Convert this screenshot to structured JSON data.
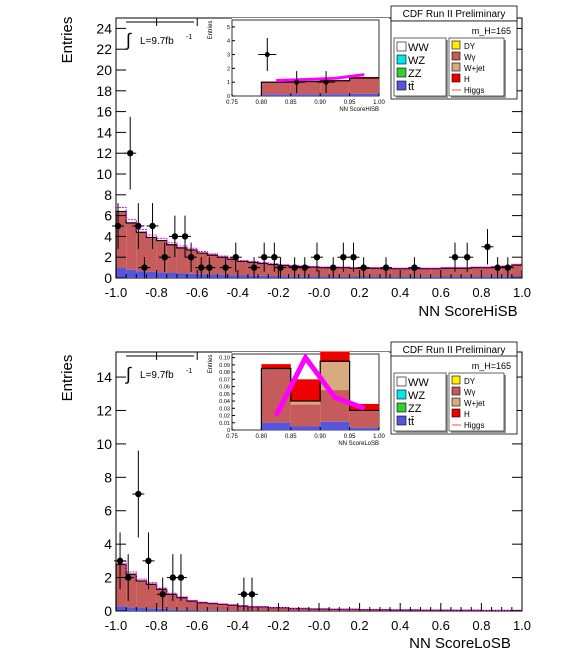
{
  "chart_data": [
    {
      "type": "bar",
      "experiment": "CDF Run II Preliminary",
      "mass_label": "m_H=165",
      "lumi_label": "L=9.7fb",
      "lumi_exp": "-1",
      "xlabel": "NN ScoreHiSB",
      "ylabel": "Entries",
      "xlim": [
        -1.0,
        1.0
      ],
      "ylim": [
        0,
        25
      ],
      "x_ticks": [
        "-1.0",
        "-0.8",
        "-0.6",
        "-0.4",
        "-0.2",
        "-0.0",
        "0.2",
        "0.4",
        "0.6",
        "0.8",
        "1.0"
      ],
      "y_ticks": [
        "0",
        "2",
        "4",
        "6",
        "8",
        "10",
        "12",
        "14",
        "16",
        "18",
        "20",
        "22",
        "24"
      ],
      "bin_edges_start": -1.0,
      "bin_width": 0.05,
      "background_total": [
        6.4,
        5.3,
        4.4,
        3.9,
        3.6,
        3.2,
        2.9,
        2.7,
        2.4,
        2.2,
        2.0,
        1.8,
        1.6,
        1.5,
        1.4,
        1.3,
        1.2,
        1.15,
        1.1,
        1.05,
        1.0,
        1.0,
        1.0,
        0.95,
        0.95,
        0.95,
        0.9,
        0.9,
        0.9,
        0.9,
        0.9,
        0.9,
        0.95,
        0.95,
        0.95,
        1.0,
        1.0,
        1.05,
        1.1,
        1.25
      ],
      "ww_fraction": 0.85,
      "data_points": [
        {
          "x": -0.99,
          "y": 5,
          "err": 2.2
        },
        {
          "x": -0.93,
          "y": 12,
          "err": 3.5
        },
        {
          "x": -0.89,
          "y": 5,
          "err": 2.2
        },
        {
          "x": -0.86,
          "y": 1,
          "err": 1.0
        },
        {
          "x": -0.82,
          "y": 5,
          "err": 2.2
        },
        {
          "x": -0.76,
          "y": 2,
          "err": 1.4
        },
        {
          "x": -0.71,
          "y": 4,
          "err": 2.0
        },
        {
          "x": -0.66,
          "y": 4,
          "err": 2.0
        },
        {
          "x": -0.63,
          "y": 2,
          "err": 1.4
        },
        {
          "x": -0.58,
          "y": 1,
          "err": 1.0
        },
        {
          "x": -0.54,
          "y": 1,
          "err": 1.0
        },
        {
          "x": -0.46,
          "y": 1,
          "err": 1.0
        },
        {
          "x": -0.41,
          "y": 2,
          "err": 1.4
        },
        {
          "x": -0.32,
          "y": 1,
          "err": 1.0
        },
        {
          "x": -0.27,
          "y": 2,
          "err": 1.4
        },
        {
          "x": -0.22,
          "y": 2,
          "err": 1.4
        },
        {
          "x": -0.19,
          "y": 1,
          "err": 1.0
        },
        {
          "x": -0.12,
          "y": 1,
          "err": 1.0
        },
        {
          "x": -0.07,
          "y": 1,
          "err": 1.0
        },
        {
          "x": -0.01,
          "y": 2,
          "err": 1.4
        },
        {
          "x": 0.07,
          "y": 1,
          "err": 1.0
        },
        {
          "x": 0.12,
          "y": 2,
          "err": 1.4
        },
        {
          "x": 0.17,
          "y": 2,
          "err": 1.4
        },
        {
          "x": 0.22,
          "y": 1,
          "err": 1.0
        },
        {
          "x": 0.33,
          "y": 1,
          "err": 1.0
        },
        {
          "x": 0.47,
          "y": 1,
          "err": 1.0
        },
        {
          "x": 0.67,
          "y": 2,
          "err": 1.4
        },
        {
          "x": 0.73,
          "y": 2,
          "err": 1.4
        },
        {
          "x": 0.83,
          "y": 3,
          "err": 1.7
        },
        {
          "x": 0.88,
          "y": 1,
          "err": 1.0
        },
        {
          "x": 0.93,
          "y": 1,
          "err": 1.0
        }
      ],
      "inset": {
        "xlabel": "NN ScoreHiSB",
        "ylabel": "Entries",
        "xlim": [
          0.75,
          1.0
        ],
        "ylim": [
          0,
          5.5
        ],
        "x_ticks": [
          "0.75",
          "0.80",
          "0.85",
          "0.90",
          "0.95",
          "1.00"
        ],
        "y_ticks": [
          "0",
          "1",
          "2",
          "3",
          "4",
          "5"
        ],
        "bin_edges": [
          0.8,
          0.85,
          0.9,
          0.95,
          1.0
        ],
        "background_total": [
          1.0,
          1.05,
          1.1,
          1.3
        ],
        "signal": [
          0.12,
          0.14,
          0.18,
          0.25
        ],
        "data_points": [
          {
            "x": 0.81,
            "y": 3,
            "err": 1.2
          },
          {
            "x": 0.86,
            "y": 1,
            "err": 0.8
          },
          {
            "x": 0.91,
            "y": 1,
            "err": 0.8
          }
        ]
      },
      "legend": [
        {
          "label": "WW",
          "color": "#ffffff"
        },
        {
          "label": "WZ",
          "color": "#00e5ee"
        },
        {
          "label": "ZZ",
          "color": "#33cc33"
        },
        {
          "label": "tt̄",
          "color": "#5555dd"
        },
        {
          "label": "DY",
          "color": "#ffee00"
        },
        {
          "label": "Wγ",
          "color": "#c65b5b"
        },
        {
          "label": "W+jet",
          "color": "#d8aa80"
        },
        {
          "label": "H",
          "color": "#ee0000"
        },
        {
          "label": "Higgs",
          "color": "#ff6666"
        }
      ]
    },
    {
      "type": "bar",
      "experiment": "CDF Run II Preliminary",
      "mass_label": "m_H=165",
      "lumi_label": "L=9.7fb",
      "lumi_exp": "-1",
      "xlabel": "NN ScoreLoSB",
      "ylabel": "Entries",
      "xlim": [
        -1.0,
        1.0
      ],
      "ylim": [
        0,
        15.5
      ],
      "x_ticks": [
        "-1.0",
        "-0.8",
        "-0.6",
        "-0.4",
        "-0.2",
        "-0.0",
        "0.2",
        "0.4",
        "0.6",
        "0.8",
        "1.0"
      ],
      "y_ticks": [
        "0",
        "2",
        "4",
        "6",
        "8",
        "10",
        "12",
        "14"
      ],
      "bin_edges_start": -1.0,
      "bin_width": 0.05,
      "background_total": [
        2.8,
        2.2,
        1.8,
        1.6,
        1.3,
        1.0,
        0.8,
        0.6,
        0.5,
        0.45,
        0.4,
        0.35,
        0.3,
        0.25,
        0.25,
        0.2,
        0.2,
        0.15,
        0.15,
        0.12,
        0.12,
        0.1,
        0.1,
        0.1,
        0.08,
        0.08,
        0.08,
        0.06,
        0.06,
        0.06,
        0.05,
        0.05,
        0.05,
        0.04,
        0.04,
        0.04,
        0.03,
        0.03,
        0.03,
        0.03
      ],
      "ww_fraction": 0.9,
      "data_points": [
        {
          "x": -0.98,
          "y": 3,
          "err": 1.7
        },
        {
          "x": -0.94,
          "y": 2,
          "err": 1.4
        },
        {
          "x": -0.89,
          "y": 7,
          "err": 2.6
        },
        {
          "x": -0.84,
          "y": 3,
          "err": 1.7
        },
        {
          "x": -0.77,
          "y": 1,
          "err": 1.0
        },
        {
          "x": -0.72,
          "y": 2,
          "err": 1.4
        },
        {
          "x": -0.68,
          "y": 2,
          "err": 1.4
        },
        {
          "x": -0.37,
          "y": 1,
          "err": 1.0
        },
        {
          "x": -0.33,
          "y": 1,
          "err": 1.0
        }
      ],
      "inset": {
        "xlabel": "NN ScoreLoSB",
        "ylabel": "Entries",
        "xlim": [
          0.75,
          1.0
        ],
        "ylim": [
          0,
          0.105
        ],
        "x_ticks": [
          "0.75",
          "0.80",
          "0.85",
          "0.90",
          "0.95",
          "1.00"
        ],
        "y_ticks": [
          "0",
          "0.01",
          "0.02",
          "0.03",
          "0.04",
          "0.05",
          "0.06",
          "0.07",
          "0.08",
          "0.09",
          "0.10"
        ],
        "bin_edges": [
          0.8,
          0.85,
          0.9,
          0.95,
          1.0
        ],
        "background_total": [
          0.085,
          0.04,
          0.095,
          0.027
        ],
        "wjet_band": [
          0.0,
          0.005,
          0.04,
          0.0
        ],
        "signal": [
          0.02,
          0.1,
          0.045,
          0.03
        ],
        "data_points": []
      },
      "legend": [
        {
          "label": "WW",
          "color": "#ffffff"
        },
        {
          "label": "WZ",
          "color": "#00e5ee"
        },
        {
          "label": "ZZ",
          "color": "#33cc33"
        },
        {
          "label": "tt̄",
          "color": "#5555dd"
        },
        {
          "label": "DY",
          "color": "#ffee00"
        },
        {
          "label": "Wγ",
          "color": "#c65b5b"
        },
        {
          "label": "W+jet",
          "color": "#d8aa80"
        },
        {
          "label": "H",
          "color": "#ee0000"
        },
        {
          "label": "Higgs",
          "color": "#ff6666"
        }
      ]
    }
  ]
}
